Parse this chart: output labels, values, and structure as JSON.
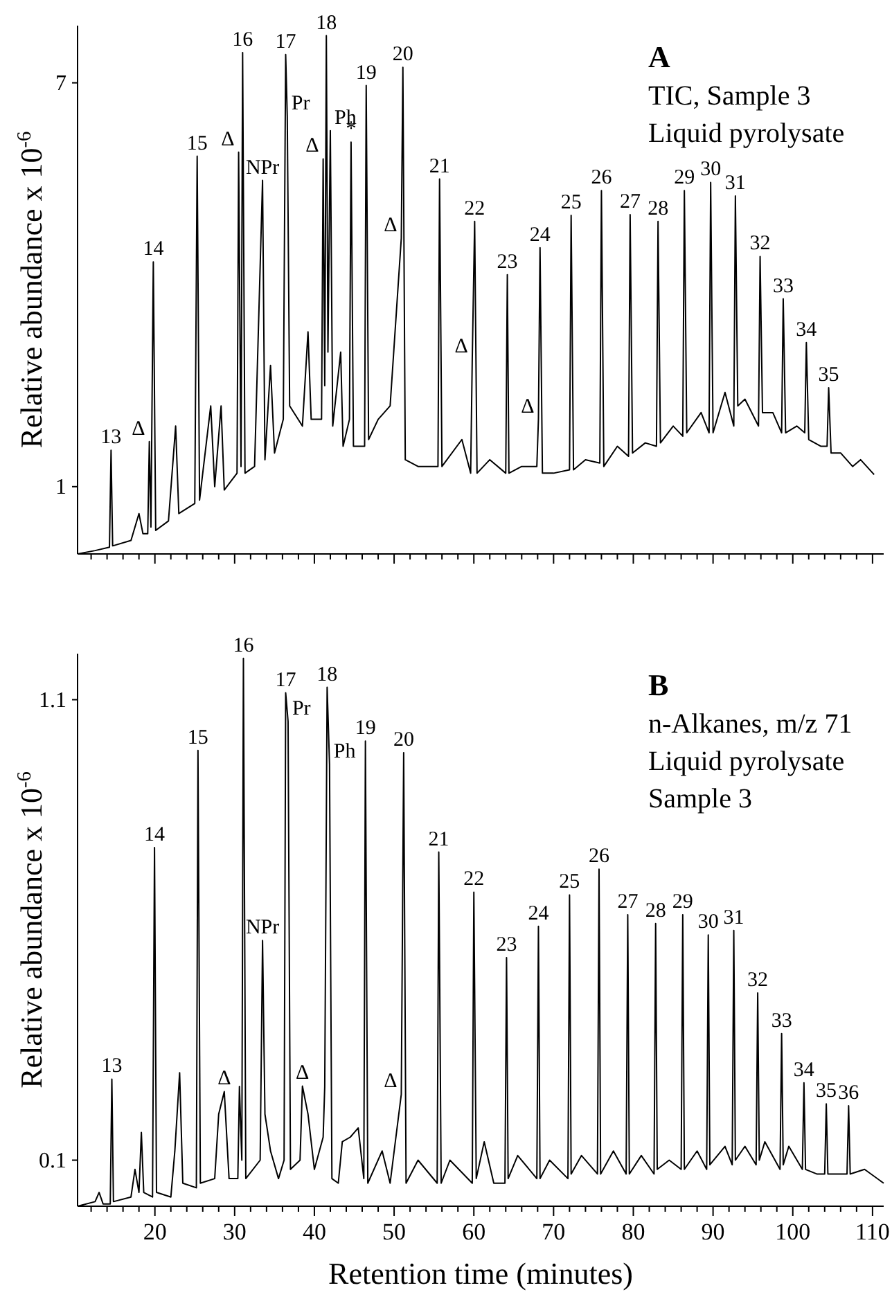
{
  "chart_data": [
    {
      "type": "line",
      "title": "A",
      "ylabel": "Relative abundance x 10$^{-6}$",
      "xlim": [
        10.3,
        111.4
      ],
      "ylim": [
        0,
        7.85
      ],
      "tick_labels": "y",
      "xticks": [
        {
          "value": 20,
          "label": null
        },
        {
          "value": 30,
          "label": null
        },
        {
          "value": 40,
          "label": null
        },
        {
          "value": 50,
          "label": null
        },
        {
          "value": 60,
          "label": null
        },
        {
          "value": 70,
          "label": null
        },
        {
          "value": 80,
          "label": null
        },
        {
          "value": 90,
          "label": null
        },
        {
          "value": 100,
          "label": null
        },
        {
          "value": 110,
          "label": null
        },
        {
          "value": 12,
          "label": null
        },
        {
          "value": 14,
          "label": null
        },
        {
          "value": 16,
          "label": null
        },
        {
          "value": 18,
          "label": null
        },
        {
          "value": 22,
          "label": null
        },
        {
          "value": 24,
          "label": null
        },
        {
          "value": 26,
          "label": null
        },
        {
          "value": 28,
          "label": null
        },
        {
          "value": 32,
          "label": null
        },
        {
          "value": 34,
          "label": null
        },
        {
          "value": 36,
          "label": null
        },
        {
          "value": 38,
          "label": null
        },
        {
          "value": 42,
          "label": null
        },
        {
          "value": 44,
          "label": null
        },
        {
          "value": 46,
          "label": null
        },
        {
          "value": 48,
          "label": null
        },
        {
          "value": 52,
          "label": null
        },
        {
          "value": 54,
          "label": null
        },
        {
          "value": 56,
          "label": null
        },
        {
          "value": 58,
          "label": null
        },
        {
          "value": 62,
          "label": null
        },
        {
          "value": 64,
          "label": null
        },
        {
          "value": 66,
          "label": null
        },
        {
          "value": 68,
          "label": null
        },
        {
          "value": 72,
          "label": null
        },
        {
          "value": 74,
          "label": null
        },
        {
          "value": 76,
          "label": null
        },
        {
          "value": 78,
          "label": null
        },
        {
          "value": 82,
          "label": null
        },
        {
          "value": 84,
          "label": null
        },
        {
          "value": 86,
          "label": null
        },
        {
          "value": 88,
          "label": null
        },
        {
          "value": 92,
          "label": null
        },
        {
          "value": 94,
          "label": null
        },
        {
          "value": 96,
          "label": null
        },
        {
          "value": 98,
          "label": null
        },
        {
          "value": 102,
          "label": null
        },
        {
          "value": 104,
          "label": null
        },
        {
          "value": 106,
          "label": null
        },
        {
          "value": 108,
          "label": null
        }
      ],
      "yticks": [
        1,
        7
      ],
      "series": [
        {
          "color": "#000000",
          "x": [
            10.3,
            12.5,
            14.3,
            14.5,
            14.7,
            17,
            18,
            18.5,
            19.1,
            19.3,
            19.5,
            19.8,
            20.1,
            21.7,
            22.6,
            23,
            25,
            25.3,
            25.6,
            27,
            27.5,
            28.3,
            28.7,
            30.3,
            30.5,
            30.8,
            31.0,
            31.3,
            32.5,
            33.5,
            33.8,
            34.5,
            35,
            36.1,
            36.4,
            36.6,
            36.9,
            38.5,
            39.2,
            39.6,
            40.9,
            41.1,
            41.3,
            41.5,
            41.7,
            42.0,
            42.3,
            43.3,
            43.6,
            44.4,
            44.6,
            44.9,
            46.3,
            46.5,
            46.8,
            48,
            49.5,
            50.9,
            51.1,
            51.4,
            53,
            55.5,
            55.7,
            56,
            58.5,
            59.6,
            59.8,
            60.1,
            60.4,
            62,
            64,
            64.2,
            64.4,
            66,
            67.9,
            68.1,
            68.3,
            68.6,
            70,
            72,
            72.2,
            72.5,
            74,
            75.8,
            76.0,
            76.3,
            78,
            79.4,
            79.6,
            79.9,
            81.5,
            82.9,
            83.1,
            83.4,
            85,
            86.2,
            86.4,
            86.7,
            88.5,
            89.5,
            89.7,
            90,
            91.5,
            92.6,
            92.8,
            93.1,
            94,
            95.7,
            95.9,
            96.2,
            97.5,
            98.6,
            98.8,
            99.1,
            100.5,
            101.5,
            101.7,
            102,
            103.5,
            104.3,
            104.5,
            104.8,
            106,
            107.5,
            108.5,
            110.2
          ],
          "values": [
            0,
            0.05,
            0.1,
            1.54,
            0.12,
            0.2,
            0.6,
            0.3,
            0.3,
            1.67,
            0.4,
            4.34,
            0.35,
            0.49,
            1.9,
            0.6,
            0.75,
            5.91,
            0.8,
            2.2,
            1.0,
            2.2,
            0.95,
            1.2,
            5.97,
            1.3,
            7.45,
            1.2,
            1.3,
            5.55,
            1.4,
            2.8,
            1.5,
            2.0,
            7.42,
            6.5,
            2.2,
            1.9,
            3.3,
            2.0,
            2.0,
            5.87,
            2.5,
            7.7,
            3.0,
            6.29,
            1.9,
            3.0,
            1.6,
            2.0,
            6.12,
            1.6,
            1.6,
            6.96,
            1.7,
            2.0,
            2.2,
            4.69,
            7.23,
            1.4,
            1.3,
            1.3,
            5.57,
            1.3,
            1.7,
            1.2,
            2.89,
            4.94,
            1.2,
            1.4,
            1.2,
            4.15,
            1.2,
            1.3,
            1.3,
            2.0,
            4.55,
            1.2,
            1.2,
            1.25,
            5.03,
            1.25,
            1.4,
            1.35,
            5.4,
            1.3,
            1.6,
            1.45,
            5.04,
            1.5,
            1.65,
            1.6,
            4.94,
            1.65,
            1.9,
            1.75,
            5.4,
            1.8,
            2.1,
            1.8,
            5.52,
            1.8,
            2.4,
            1.9,
            5.32,
            2.2,
            2.3,
            1.9,
            4.42,
            2.1,
            2.1,
            1.8,
            3.79,
            1.8,
            1.9,
            1.8,
            3.14,
            1.7,
            1.6,
            1.6,
            2.47,
            1.5,
            1.5,
            1.3,
            1.4,
            1.18
          ]
        }
      ],
      "annotations": [
        "TIC, Sample 3",
        "Liquid pyrolysate",
        {
          "text": "13",
          "x": 14.5,
          "y": 1.54
        },
        {
          "text": "Δ",
          "x": 19.3,
          "y": 1.67
        },
        {
          "text": "14",
          "x": 19.8,
          "y": 4.34
        },
        {
          "text": "15",
          "x": 25.3,
          "y": 5.91
        },
        {
          "text": "Δ",
          "x": 30.5,
          "y": 5.97
        },
        {
          "text": "16",
          "x": 31.0,
          "y": 7.45
        },
        {
          "text": "NPr",
          "x": 33.5,
          "y": 5.55
        },
        {
          "text": "17",
          "x": 36.4,
          "y": 7.42
        },
        {
          "text": "Pr",
          "x": 36.6,
          "y": 6.5
        },
        {
          "text": "Δ",
          "x": 41.1,
          "y": 5.87
        },
        {
          "text": "18",
          "x": 41.5,
          "y": 7.7
        },
        {
          "text": "Ph",
          "x": 42.0,
          "y": 6.29
        },
        {
          "text": "*",
          "x": 44.6,
          "y": 6.12
        },
        {
          "text": "19",
          "x": 46.5,
          "y": 6.96
        },
        {
          "text": "Δ",
          "x": 50.9,
          "y": 4.69
        },
        {
          "text": "20",
          "x": 51.1,
          "y": 7.23
        },
        {
          "text": "21",
          "x": 55.7,
          "y": 5.57
        },
        {
          "text": "Δ",
          "x": 59.8,
          "y": 2.89
        },
        {
          "text": "22",
          "x": 60.1,
          "y": 4.94
        },
        {
          "text": "23",
          "x": 64.2,
          "y": 4.15
        },
        {
          "text": "Δ",
          "x": 68.1,
          "y": 2.0
        },
        {
          "text": "24",
          "x": 68.3,
          "y": 4.55
        },
        {
          "text": "25",
          "x": 72.2,
          "y": 5.03
        },
        {
          "text": "26",
          "x": 76.0,
          "y": 5.4
        },
        {
          "text": "27",
          "x": 79.6,
          "y": 5.04
        },
        {
          "text": "28",
          "x": 83.1,
          "y": 4.94
        },
        {
          "text": "29",
          "x": 86.4,
          "y": 5.4
        },
        {
          "text": "30",
          "x": 89.7,
          "y": 5.52
        },
        {
          "text": "31",
          "x": 92.8,
          "y": 5.32
        },
        {
          "text": "32",
          "x": 95.9,
          "y": 4.42
        },
        {
          "text": "33",
          "x": 98.8,
          "y": 3.79
        },
        {
          "text": "34",
          "x": 101.7,
          "y": 3.14
        },
        {
          "text": "35",
          "x": 104.5,
          "y": 2.47
        }
      ]
    },
    {
      "type": "line",
      "title": "B",
      "xlabel": "Retention time (minutes)",
      "ylabel": "Relative abundance x 10$^{-6}$",
      "xlim": [
        10.3,
        111.4
      ],
      "ylim": [
        0,
        1.2
      ],
      "xticks": [
        20,
        30,
        40,
        50,
        60,
        70,
        80,
        90,
        100,
        110,
        {
          "value": 12,
          "label": null
        },
        {
          "value": 14,
          "label": null
        },
        {
          "value": 16,
          "label": null
        },
        {
          "value": 18,
          "label": null
        },
        {
          "value": 22,
          "label": null
        },
        {
          "value": 24,
          "label": null
        },
        {
          "value": 26,
          "label": null
        },
        {
          "value": 28,
          "label": null
        },
        {
          "value": 32,
          "label": null
        },
        {
          "value": 34,
          "label": null
        },
        {
          "value": 36,
          "label": null
        },
        {
          "value": 38,
          "label": null
        },
        {
          "value": 42,
          "label": null
        },
        {
          "value": 44,
          "label": null
        },
        {
          "value": 46,
          "label": null
        },
        {
          "value": 48,
          "label": null
        },
        {
          "value": 52,
          "label": null
        },
        {
          "value": 54,
          "label": null
        },
        {
          "value": 56,
          "label": null
        },
        {
          "value": 58,
          "label": null
        },
        {
          "value": 62,
          "label": null
        },
        {
          "value": 64,
          "label": null
        },
        {
          "value": 66,
          "label": null
        },
        {
          "value": 68,
          "label": null
        },
        {
          "value": 72,
          "label": null
        },
        {
          "value": 74,
          "label": null
        },
        {
          "value": 76,
          "label": null
        },
        {
          "value": 78,
          "label": null
        },
        {
          "value": 82,
          "label": null
        },
        {
          "value": 84,
          "label": null
        },
        {
          "value": 86,
          "label": null
        },
        {
          "value": 88,
          "label": null
        },
        {
          "value": 92,
          "label": null
        },
        {
          "value": 94,
          "label": null
        },
        {
          "value": 96,
          "label": null
        },
        {
          "value": 98,
          "label": null
        },
        {
          "value": 102,
          "label": null
        },
        {
          "value": 104,
          "label": null
        },
        {
          "value": 106,
          "label": null
        },
        {
          "value": 108,
          "label": null
        }
      ],
      "yticks": [
        0.1,
        1.1
      ],
      "series": [
        {
          "color": "#000000",
          "x": [
            10.3,
            12.5,
            13,
            13.5,
            14.4,
            14.6,
            14.8,
            17,
            17.5,
            18.0,
            18.3,
            18.6,
            19.7,
            19.95,
            20.2,
            22,
            22.5,
            23.1,
            23.5,
            25.2,
            25.4,
            25.7,
            27.5,
            28,
            28.7,
            29.3,
            30.4,
            30.6,
            30.9,
            31.1,
            31.4,
            33.2,
            33.5,
            33.8,
            34.5,
            35.5,
            36.2,
            36.4,
            36.7,
            37,
            38.2,
            38.5,
            39.2,
            40,
            41.1,
            41.3,
            41.6,
            41.9,
            42.2,
            43,
            43.5,
            44.5,
            45.5,
            46.2,
            46.4,
            46.7,
            48.5,
            49.5,
            50.9,
            51.2,
            51.5,
            53,
            55.4,
            55.6,
            55.9,
            57,
            59.8,
            60.0,
            60.3,
            61.3,
            62.5,
            63.9,
            64.1,
            64.3,
            65.5,
            67.9,
            68.1,
            68.3,
            69.5,
            71.8,
            72.0,
            72.2,
            73.5,
            75.5,
            75.7,
            75.9,
            77.5,
            79.1,
            79.3,
            79.5,
            81,
            82.6,
            82.8,
            83,
            84.5,
            86,
            86.2,
            86.4,
            88,
            89.2,
            89.4,
            89.6,
            91.5,
            92.4,
            92.6,
            92.8,
            94,
            95.4,
            95.6,
            95.8,
            96.5,
            98.4,
            98.6,
            98.8,
            99.5,
            101.2,
            101.4,
            101.6,
            103,
            104,
            104.2,
            104.4,
            106.8,
            107.0,
            107.2,
            109,
            111.4
          ],
          "values": [
            0,
            0.01,
            0.03,
            0.005,
            0.005,
            0.276,
            0.01,
            0.02,
            0.08,
            0.03,
            0.16,
            0.03,
            0.02,
            0.779,
            0.03,
            0.02,
            0.12,
            0.29,
            0.05,
            0.04,
            0.99,
            0.05,
            0.06,
            0.2,
            0.249,
            0.06,
            0.06,
            0.26,
            0.1,
            1.19,
            0.06,
            0.1,
            0.577,
            0.2,
            0.12,
            0.06,
            0.1,
            1.115,
            1.053,
            0.08,
            0.1,
            0.261,
            0.2,
            0.08,
            0.15,
            0.26,
            1.127,
            0.96,
            0.06,
            0.05,
            0.14,
            0.15,
            0.17,
            0.06,
            1.01,
            0.05,
            0.12,
            0.05,
            0.243,
            0.985,
            0.05,
            0.1,
            0.05,
            0.769,
            0.05,
            0.1,
            0.05,
            0.682,
            0.06,
            0.14,
            0.05,
            0.05,
            0.54,
            0.06,
            0.11,
            0.06,
            0.608,
            0.06,
            0.1,
            0.06,
            0.676,
            0.07,
            0.11,
            0.07,
            0.732,
            0.07,
            0.12,
            0.07,
            0.633,
            0.07,
            0.11,
            0.07,
            0.614,
            0.08,
            0.1,
            0.08,
            0.633,
            0.08,
            0.12,
            0.08,
            0.589,
            0.09,
            0.13,
            0.09,
            0.599,
            0.1,
            0.13,
            0.09,
            0.463,
            0.1,
            0.14,
            0.08,
            0.375,
            0.09,
            0.13,
            0.08,
            0.268,
            0.08,
            0.07,
            0.07,
            0.222,
            0.07,
            0.07,
            0.218,
            0.07,
            0.08,
            0.05
          ]
        }
      ],
      "annotations": [
        "n-Alkanes, m/z 71",
        "Liquid pyrolysate",
        "Sample 3",
        {
          "text": "13",
          "x": 14.6,
          "y": 0.276
        },
        {
          "text": "14",
          "x": 19.95,
          "y": 0.779
        },
        {
          "text": "15",
          "x": 25.4,
          "y": 0.99
        },
        {
          "text": "Δ",
          "x": 28.7,
          "y": 0.249
        },
        {
          "text": "16",
          "x": 31.1,
          "y": 1.19
        },
        {
          "text": "NPr",
          "x": 33.5,
          "y": 0.577
        },
        {
          "text": "17",
          "x": 36.4,
          "y": 1.115
        },
        {
          "text": "Pr",
          "x": 36.7,
          "y": 1.053
        },
        {
          "text": "Δ",
          "x": 38.5,
          "y": 0.261
        },
        {
          "text": "18",
          "x": 41.6,
          "y": 1.127
        },
        {
          "text": "Ph",
          "x": 41.9,
          "y": 0.96
        },
        {
          "text": "19",
          "x": 46.4,
          "y": 1.01
        },
        {
          "text": "Δ",
          "x": 50.9,
          "y": 0.243
        },
        {
          "text": "20",
          "x": 51.2,
          "y": 0.985
        },
        {
          "text": "21",
          "x": 55.6,
          "y": 0.769
        },
        {
          "text": "22",
          "x": 60.0,
          "y": 0.682
        },
        {
          "text": "23",
          "x": 64.1,
          "y": 0.54
        },
        {
          "text": "24",
          "x": 68.1,
          "y": 0.608
        },
        {
          "text": "25",
          "x": 72.0,
          "y": 0.676
        },
        {
          "text": "26",
          "x": 75.7,
          "y": 0.732
        },
        {
          "text": "27",
          "x": 79.3,
          "y": 0.633
        },
        {
          "text": "28",
          "x": 82.8,
          "y": 0.614
        },
        {
          "text": "29",
          "x": 86.2,
          "y": 0.633
        },
        {
          "text": "30",
          "x": 89.4,
          "y": 0.589
        },
        {
          "text": "31",
          "x": 92.6,
          "y": 0.599
        },
        {
          "text": "32",
          "x": 95.6,
          "y": 0.463
        },
        {
          "text": "33",
          "x": 98.6,
          "y": 0.375
        },
        {
          "text": "34",
          "x": 101.4,
          "y": 0.268
        },
        {
          "text": "35",
          "x": 104.2,
          "y": 0.222
        },
        {
          "text": "36",
          "x": 107.0,
          "y": 0.218
        }
      ]
    }
  ]
}
